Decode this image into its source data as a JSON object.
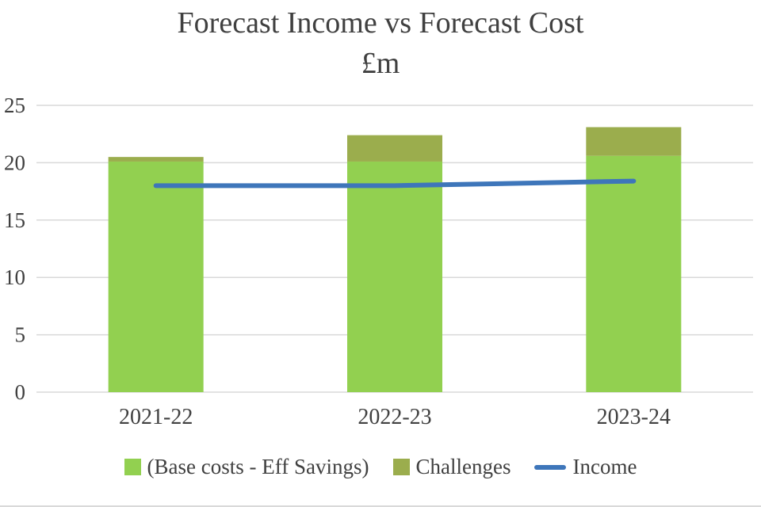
{
  "chart_data": {
    "type": "bar",
    "subtype": "stacked-bar-with-line",
    "title": "Forecast Income vs Forecast Cost",
    "subtitle": "£m",
    "categories": [
      "2021-22",
      "2022-23",
      "2023-24"
    ],
    "series": [
      {
        "name": "(Base costs - Eff Savings)",
        "render": "bar",
        "color": "#92d050",
        "values": [
          20.1,
          20.1,
          20.6
        ]
      },
      {
        "name": "Challenges",
        "render": "bar",
        "color": "#9bad4d",
        "values": [
          0.4,
          2.3,
          2.5
        ]
      },
      {
        "name": "Income",
        "render": "line",
        "color": "#3e76ba",
        "values": [
          18.0,
          18.0,
          18.4
        ]
      }
    ],
    "stacked": true,
    "xlabel": "",
    "ylabel": "",
    "ylim": [
      0,
      25
    ],
    "ytick_step": 5,
    "yticks": [
      0,
      5,
      10,
      15,
      20,
      25
    ],
    "grid": true,
    "gridline_color": "#d9d9d9",
    "axis_text_color": "#404040",
    "legend_position": "bottom"
  }
}
